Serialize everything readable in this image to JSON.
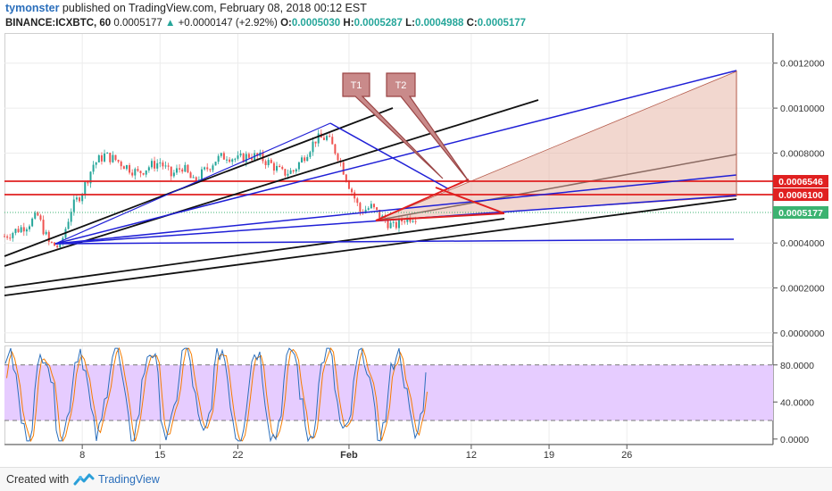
{
  "header": {
    "author": "tymonster",
    "published": " published on TradingView.com, February 08, 2018 00:12 EST",
    "symbol": "BINANCE:ICXBTC, 60",
    "last": "0.0005177",
    "change": "+0.0000147 (+2.92%)",
    "o_label": "O:",
    "o_value": "0.0005030",
    "h_label": "H:",
    "h_value": "0.0005287",
    "l_label": "L:",
    "l_value": "0.0004988",
    "c_label": "C:",
    "c_value": "0.0005177"
  },
  "annotations": {
    "t1": "T1",
    "t2": "T2"
  },
  "price_tags": {
    "upper": "0.0006546",
    "middle": "0.0006100",
    "last": "0.0005177"
  },
  "footer": {
    "created": "Created with",
    "brand": "TradingView"
  },
  "colors": {
    "up": "#26a69a",
    "down": "#ef5350",
    "blue_line": "#1f1fd6",
    "red_line": "#e02020",
    "stoch_k": "#2a6ebb",
    "stoch_d": "#f57c00",
    "stoch_band": "#e6ccff"
  },
  "chart_data": [
    {
      "type": "candlestick",
      "title": "BINANCE:ICXBTC, 60",
      "x_ticks": [
        "8",
        "15",
        "22",
        "Feb",
        "12",
        "19",
        "26"
      ],
      "y_ticks": [
        "0.0012000",
        "0.0010000",
        "0.0008000",
        "0.0004000",
        "0.0002000",
        "0.0000000"
      ],
      "ylim": [
        -4e-05,
        0.00133
      ],
      "grid": true,
      "approx_close_path": {
        "x_days": [
          0,
          2,
          3,
          4,
          5,
          6,
          7,
          8,
          9,
          10,
          11,
          12,
          13,
          14,
          15,
          16,
          17,
          18,
          19,
          20,
          21,
          22,
          23,
          24,
          25,
          26,
          27,
          28,
          29,
          30,
          31,
          32,
          33,
          34,
          35,
          36,
          37
        ],
        "price": [
          0.00043,
          0.00048,
          0.00052,
          0.0004,
          0.00038,
          0.00055,
          0.00063,
          0.00075,
          0.00079,
          0.00077,
          0.00074,
          0.00071,
          0.00074,
          0.00076,
          0.0007,
          0.00074,
          0.00067,
          0.00072,
          0.00077,
          0.00079,
          0.00077,
          0.00079,
          0.00078,
          0.00075,
          0.00071,
          0.00072,
          0.00079,
          0.00086,
          0.00087,
          0.00079,
          0.00066,
          0.00054,
          0.00056,
          0.00051,
          0.00047,
          0.00051,
          0.00052
        ]
      }
    },
    {
      "type": "line",
      "title": "",
      "y_ticks": [
        "80.0000",
        "40.0000",
        "0.0000"
      ],
      "ylim": [
        -5,
        100
      ],
      "band": [
        20,
        80
      ]
    }
  ]
}
